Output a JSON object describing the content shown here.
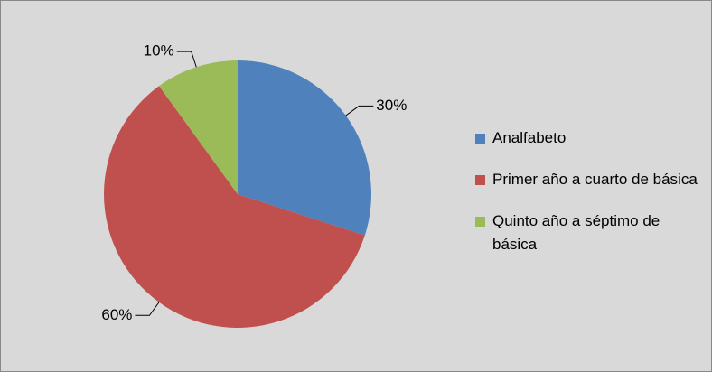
{
  "chart_data": {
    "type": "pie",
    "categories": [
      "Analfabeto",
      "Primer año a cuarto de básica",
      "Quinto año a séptimo de básica"
    ],
    "values": [
      30,
      60,
      10
    ],
    "value_labels": [
      "30%",
      "60%",
      "10%"
    ],
    "colors": [
      "#4f81bd",
      "#c0504d",
      "#9bbb59"
    ],
    "legend": "right"
  }
}
